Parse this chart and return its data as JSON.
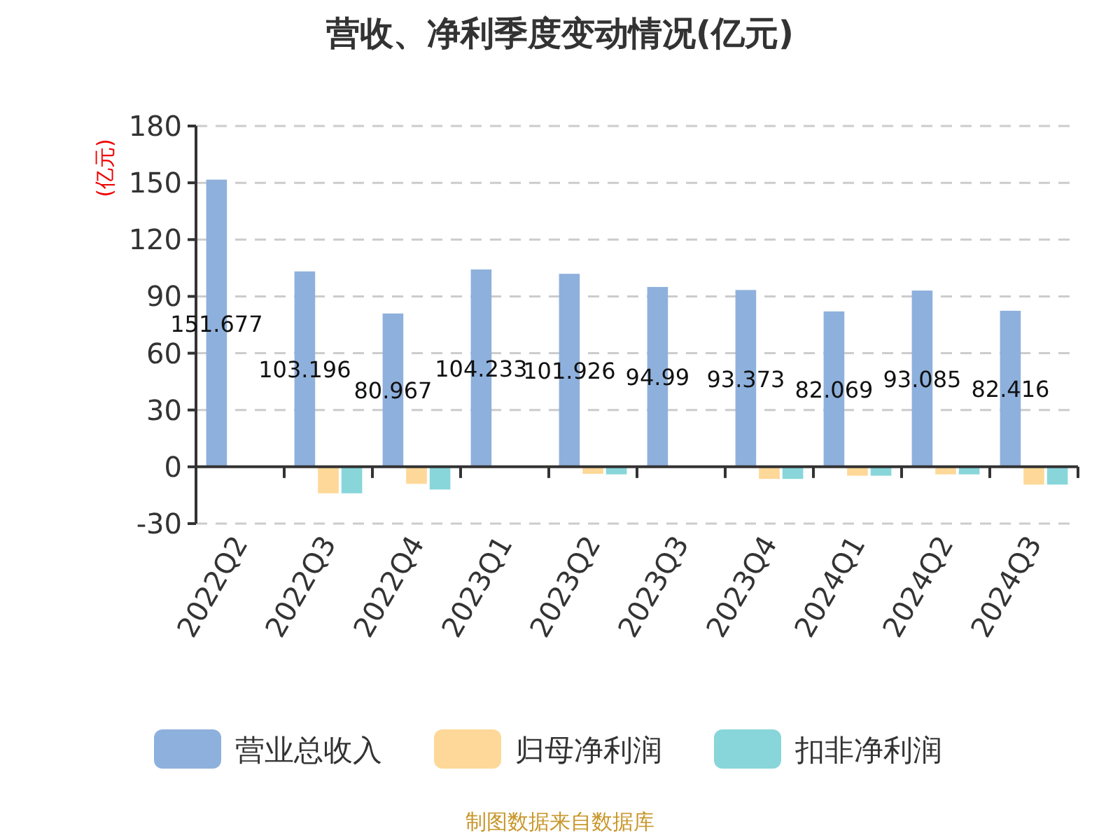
{
  "chart_data": {
    "type": "bar",
    "title": "营收、净利季度变动情况(亿元)",
    "ylabel": "(亿元)",
    "categories": [
      "2022Q2",
      "2022Q3",
      "2022Q4",
      "2023Q1",
      "2023Q2",
      "2023Q3",
      "2023Q4",
      "2024Q1",
      "2024Q2",
      "2024Q3"
    ],
    "series": [
      {
        "name": "营业总收入",
        "color": "#8eb0dc",
        "values": [
          151.677,
          103.196,
          80.967,
          104.233,
          101.926,
          94.99,
          93.373,
          82.069,
          93.085,
          82.416
        ],
        "value_labels": [
          "151.677",
          "103.196",
          "80.967",
          "104.233",
          "101.926",
          "94.99",
          "93.373",
          "82.069",
          "93.085",
          "82.416"
        ]
      },
      {
        "name": "归母净利润",
        "color": "#fdd898",
        "values": [
          0.5,
          -14,
          -9,
          0.3,
          -3.7,
          0.5,
          -6.4,
          -4.7,
          -4,
          -9.4
        ]
      },
      {
        "name": "扣非净利润",
        "color": "#88d6da",
        "values": [
          null,
          -14,
          -12,
          null,
          -4,
          null,
          -6.4,
          -4.7,
          -4,
          -9.4
        ]
      }
    ],
    "ylim": [
      -30,
      180
    ],
    "yticks": [
      -30,
      0,
      30,
      60,
      90,
      120,
      150,
      180
    ],
    "grid": "y",
    "legend": "bottom",
    "annotations": [
      "制图数据来自数据库"
    ]
  }
}
